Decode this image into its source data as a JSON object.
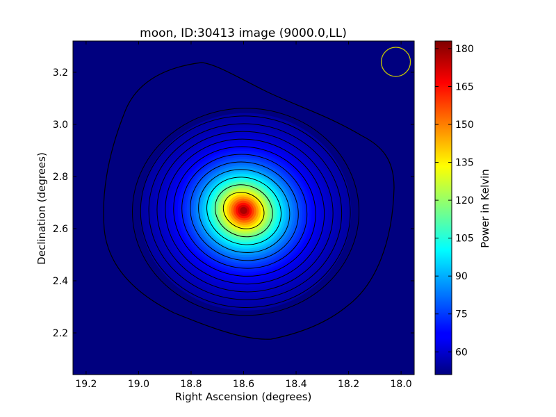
{
  "chart_data": {
    "type": "heatmap",
    "title": "moon, ID:30413 image (9000.0,LL)",
    "xlabel": "Right Ascension (degrees)",
    "ylabel": "Declination (degrees)",
    "xlim": [
      19.25,
      17.95
    ],
    "ylim": [
      2.04,
      3.32
    ],
    "x_ticks": [
      19.2,
      19.0,
      18.8,
      18.6,
      18.4,
      18.2,
      18.0
    ],
    "x_tick_labels": [
      "19.2",
      "19.0",
      "18.8",
      "18.6",
      "18.4",
      "18.2",
      "18.0"
    ],
    "y_ticks": [
      2.2,
      2.4,
      2.6,
      2.8,
      3.0,
      3.2
    ],
    "y_tick_labels": [
      "2.2",
      "2.4",
      "2.6",
      "2.8",
      "3.0",
      "3.2"
    ],
    "colorbar": {
      "label": "Power in Kelvin",
      "min": 51,
      "max": 183,
      "ticks": [
        60,
        75,
        90,
        105,
        120,
        135,
        150,
        165,
        180
      ],
      "tick_labels": [
        "60",
        "75",
        "90",
        "105",
        "120",
        "135",
        "150",
        "165",
        "180"
      ],
      "colormap": "jet"
    },
    "peak": {
      "ra": 18.6,
      "dec": 2.67,
      "value": 183
    },
    "background_value": 51,
    "contour_levels_kelvin": [
      57,
      68,
      78,
      88,
      98,
      108,
      118,
      128,
      138,
      148,
      158,
      168,
      178
    ],
    "beam_marker": {
      "shape": "circle",
      "ra": 18.02,
      "dec": 3.24,
      "color": "#c8c800"
    },
    "grid": false
  }
}
